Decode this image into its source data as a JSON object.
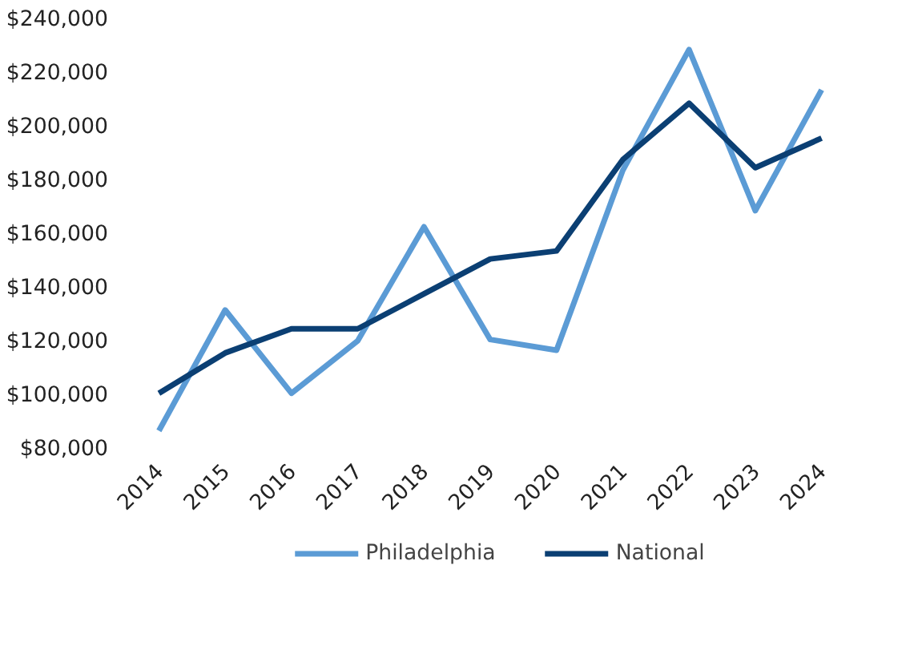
{
  "chart_data": {
    "type": "line",
    "categories": [
      "2014",
      "2015",
      "2016",
      "2017",
      "2018",
      "2019",
      "2020",
      "2021",
      "2022",
      "2023",
      "2024"
    ],
    "series": [
      {
        "name": "Philadelphia",
        "color": "#5b9bd5",
        "values": [
          87000,
          132000,
          101000,
          120500,
          163000,
          121000,
          117000,
          184000,
          229000,
          169000,
          214000
        ]
      },
      {
        "name": "National",
        "color": "#0b3f73",
        "values": [
          101000,
          116000,
          125000,
          125000,
          138000,
          151000,
          154000,
          188000,
          209000,
          185000,
          196000
        ]
      }
    ],
    "ylim": [
      80000,
      240000
    ],
    "yticks": [
      {
        "value": 80000,
        "label": "$80,000"
      },
      {
        "value": 100000,
        "label": "$100,000"
      },
      {
        "value": 120000,
        "label": "$120,000"
      },
      {
        "value": 140000,
        "label": "$140,000"
      },
      {
        "value": 160000,
        "label": "$160,000"
      },
      {
        "value": 180000,
        "label": "$180,000"
      },
      {
        "value": 200000,
        "label": "$200,000"
      },
      {
        "value": 220000,
        "label": "$220,000"
      },
      {
        "value": 240000,
        "label": "$240,000"
      }
    ],
    "grid": false,
    "legend": "bottom",
    "marker": "none",
    "line_style": "solid"
  }
}
